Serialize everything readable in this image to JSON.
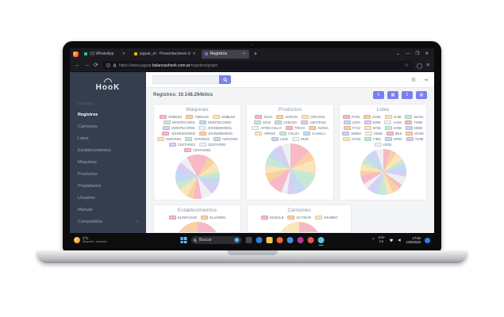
{
  "browser": {
    "tabs": [
      {
        "label": "(1) WhatsApp",
        "favicon_color": "#25d366",
        "favicon_name": "whatsapp-icon",
        "active": false
      },
      {
        "label": "jaguar_el - Presentaciones d",
        "favicon_color": "#f4b400",
        "favicon_name": "slides-icon",
        "active": false
      },
      {
        "label": "Registros",
        "favicon_color": "#5b7bd5",
        "favicon_name": "registros-icon",
        "active": true
      }
    ],
    "new_tab": "+",
    "window_controls": {
      "list": "⌄",
      "min": "—",
      "max": "❒",
      "close": "✕"
    },
    "nav": {
      "back": "←",
      "forward": "→",
      "reload": "⟳"
    },
    "url": {
      "prefix": "https://www.jaguar.",
      "host": "balanzashook.com.ar",
      "path": "/registros/graph",
      "star": "☆"
    },
    "menu_glyph": "≡",
    "account_glyph": "◯"
  },
  "sidebar": {
    "logo_text": "HooK",
    "section_label": "Consultas",
    "items": [
      {
        "label": "Registros",
        "active": true
      },
      {
        "label": "Camiones",
        "active": false
      },
      {
        "label": "Lotes",
        "active": false
      },
      {
        "label": "Establecimientos",
        "active": false
      },
      {
        "label": "Máquinas",
        "active": false
      },
      {
        "label": "Productos",
        "active": false
      },
      {
        "label": "Propietarios",
        "active": false
      },
      {
        "label": "Usuarios",
        "active": false
      },
      {
        "label": "Manual",
        "active": false
      },
      {
        "label": "Compartidos",
        "active": false,
        "chevron": "›"
      }
    ]
  },
  "header": {
    "search_placeholder": ""
  },
  "records": {
    "label": "Registros: 10.148.294kilos",
    "buttons": [
      {
        "name": "upload-button",
        "glyph": "↥"
      },
      {
        "name": "table-button",
        "glyph": "▦"
      },
      {
        "name": "download-button",
        "glyph": "↧"
      },
      {
        "name": "print-button",
        "glyph": "▤"
      }
    ]
  },
  "palette": [
    "#f6b9c5",
    "#f9cfa4",
    "#fbe4b8",
    "#c7e8d5",
    "#c4daf3",
    "#d8cdf2",
    "#edf0f2"
  ],
  "cards": [
    {
      "title": "Máquinas",
      "labels": [
        "OMBU01",
        "OMBU02",
        "OMBU03",
        "MONTECOR01",
        "MONTECOR02",
        "MONTECOR03",
        "JOHNDEERE01",
        "JOHNDEERE02",
        "JOHNDEERE03",
        "AKRON01",
        "AKRON02",
        "AKRON03",
        "CESTARI01",
        "CESTARI02",
        "CESTARI03"
      ],
      "values": [
        8,
        6,
        7,
        5,
        6,
        7,
        8,
        6,
        5,
        7,
        6,
        8,
        7,
        6,
        8
      ],
      "pie_size": 56
    },
    {
      "title": "Productos",
      "labels": [
        "SOJA",
        "SORGO",
        "GIRASOL",
        "MAIZ",
        "CEBADA",
        "CENTENO",
        "AFRECHILLO",
        "TRIGO",
        "AVENA",
        "ARROZ",
        "COLZA",
        "CANOLA",
        "LINO",
        "MIJO"
      ],
      "values": [
        13,
        6,
        9,
        12,
        7,
        5,
        4,
        10,
        6,
        5,
        6,
        5,
        6,
        6
      ],
      "pie_size": 64
    },
    {
      "title": "Lotes",
      "labels": [
        "PV60",
        "ZO36",
        "VL88",
        "WG04",
        "LE03",
        "B265",
        "AA63",
        "TM06",
        "FY12",
        "BT36",
        "ZA86",
        "DB09",
        "WM84",
        "GD69",
        "IB15",
        "WV60",
        "OO40",
        "F360",
        "GR91",
        "TG58",
        "KB33"
      ],
      "values": [
        5,
        4,
        6,
        3,
        5,
        4,
        6,
        3,
        5,
        4,
        6,
        3,
        5,
        4,
        6,
        3,
        5,
        4,
        6,
        3,
        5
      ],
      "pie_size": 58
    },
    {
      "title": "Establecimientos",
      "labels": [
        "ELREFUGIO",
        "ELJARDIN"
      ],
      "values": [
        55,
        45
      ],
      "pie_size": 56
    },
    {
      "title": "Camiones",
      "labels": [
        "KD261LB",
        "DA732VR",
        "MS49DO"
      ],
      "values": [
        40,
        35,
        25
      ],
      "pie_size": 56
    }
  ],
  "taskbar": {
    "weather": {
      "temp": "1°C",
      "desc": "Mayorm. soleado"
    },
    "search_label": "Buscar",
    "apps": [
      {
        "name": "task-view-icon",
        "color": "#44464f",
        "active": false
      },
      {
        "name": "edge-icon",
        "color": "#2f7fe0",
        "active": false
      },
      {
        "name": "explorer-icon",
        "color": "#f7c54d",
        "active": false
      },
      {
        "name": "firefox-icon",
        "color": "#f1672a",
        "active": false
      },
      {
        "name": "app-blue-icon",
        "color": "#4a90d9",
        "active": false
      },
      {
        "name": "app-magenta-icon",
        "color": "#b5389b",
        "active": false
      },
      {
        "name": "app-red-icon",
        "color": "#e2574c",
        "active": false
      },
      {
        "name": "paint-icon",
        "color": "#59c3d6",
        "active": true
      }
    ],
    "tray": {
      "chevron": "^",
      "lang1": "ESP",
      "lang2": "ES",
      "time": "17:54",
      "date": "11/9/2023"
    }
  }
}
